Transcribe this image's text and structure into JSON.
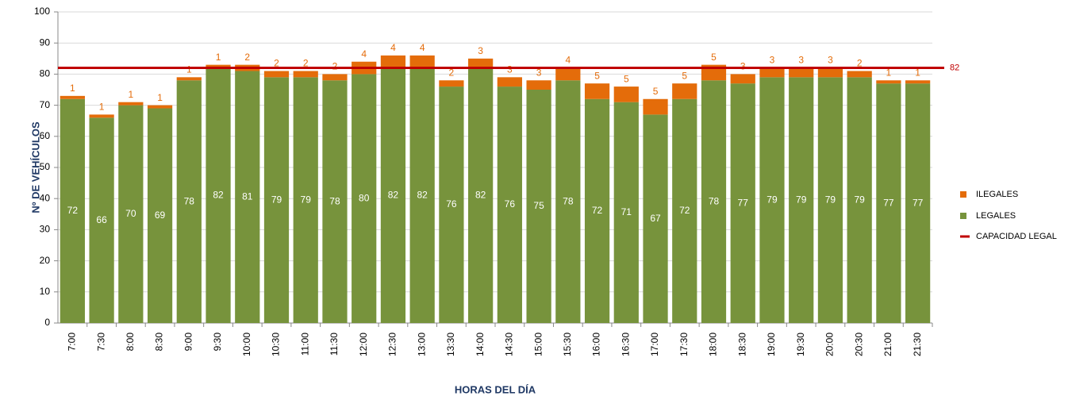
{
  "chart_data": {
    "type": "stacked_bar",
    "y_axis_label": "Nº DE VEHÍCULOS",
    "x_axis_label": "HORAS DEL DÍA",
    "categories": [
      "7:00",
      "7:30",
      "8:00",
      "8:30",
      "9:00",
      "9:30",
      "10:00",
      "10:30",
      "11:00",
      "11:30",
      "12:00",
      "12:30",
      "13:00",
      "13:30",
      "14:00",
      "14:30",
      "15:00",
      "15:30",
      "16:00",
      "16:30",
      "17:00",
      "17:30",
      "18:00",
      "18:30",
      "19:00",
      "19:30",
      "20:00",
      "20:30",
      "21:00",
      "21:30"
    ],
    "series": [
      {
        "name": "LEGALES",
        "color": "#77933c",
        "values": [
          72,
          66,
          70,
          69,
          78,
          82,
          81,
          79,
          79,
          78,
          80,
          82,
          82,
          76,
          82,
          76,
          75,
          78,
          72,
          71,
          67,
          72,
          78,
          77,
          79,
          79,
          79,
          79,
          77,
          77
        ]
      },
      {
        "name": "ILEGALES",
        "color": "#e46c0a",
        "values": [
          1,
          1,
          1,
          1,
          1,
          1,
          2,
          2,
          2,
          2,
          4,
          4,
          4,
          2,
          3,
          3,
          3,
          4,
          5,
          5,
          5,
          5,
          5,
          3,
          3,
          3,
          3,
          2,
          1,
          1
        ]
      }
    ],
    "reference_line": {
      "name": "CAPACIDAD LEGAL",
      "value": 82,
      "color": "#c00000"
    },
    "ylim": [
      0,
      100
    ],
    "yticks": [
      0,
      10,
      20,
      30,
      40,
      50,
      60,
      70,
      80,
      90,
      100
    ],
    "grid": true,
    "legend": "right"
  }
}
